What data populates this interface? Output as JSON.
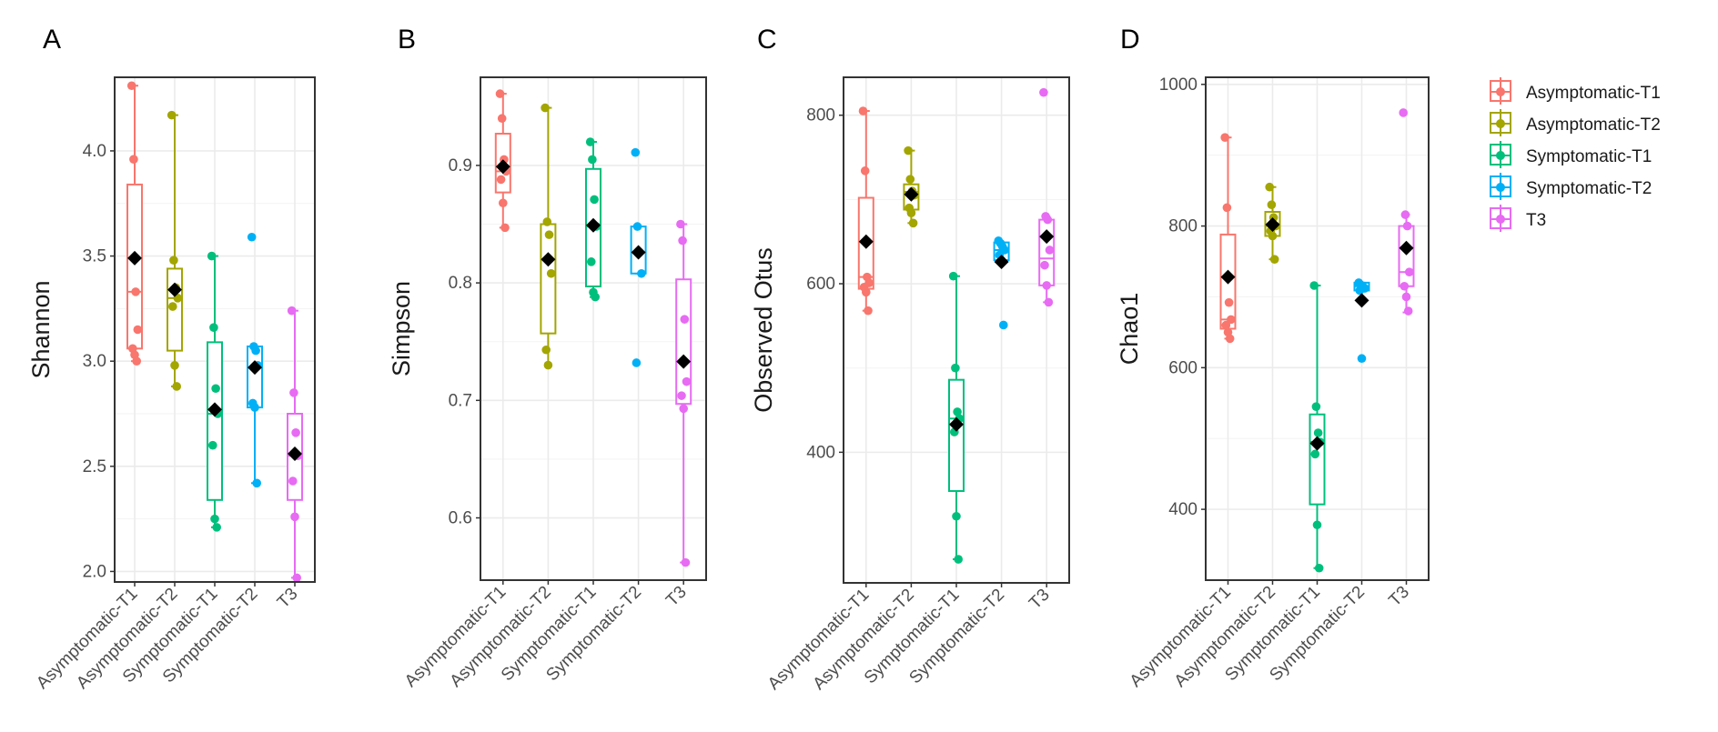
{
  "figure": {
    "background": "#ffffff",
    "panel_border": "#333333",
    "grid_color": "#ebebeb",
    "mean_color": "#000000"
  },
  "legend": {
    "entries": [
      {
        "label": "Asymptomatic-T1",
        "color": "#F8766D"
      },
      {
        "label": "Asymptomatic-T2",
        "color": "#A3A500"
      },
      {
        "label": "Symptomatic-T1",
        "color": "#00BF7D"
      },
      {
        "label": "Symptomatic-T2",
        "color": "#00B0F6"
      },
      {
        "label": "T3",
        "color": "#E76BF3"
      }
    ]
  },
  "chart_data": [
    {
      "type": "box",
      "panel": "A",
      "ylabel": "Shannon",
      "ylim": [
        1.95,
        4.35
      ],
      "yticks": [
        2.0,
        2.5,
        3.0,
        3.5,
        4.0
      ],
      "ytick_labels": [
        "2.0",
        "2.5",
        "3.0",
        "3.5",
        "4.0"
      ],
      "categories": [
        "Asymptomatic-T1",
        "Asymptomatic-T2",
        "Symptomatic-T1",
        "Symptomatic-T2",
        "T3"
      ],
      "series": [
        {
          "name": "Asymptomatic-T1",
          "color": "#F8766D",
          "min": 3.0,
          "q1": 3.06,
          "median": 3.33,
          "q3": 3.84,
          "max": 4.31,
          "mean": 3.49,
          "points": [
            4.31,
            3.96,
            3.33,
            3.15,
            3.06,
            3.03,
            3.0
          ]
        },
        {
          "name": "Asymptomatic-T2",
          "color": "#A3A500",
          "min": 2.88,
          "q1": 3.05,
          "median": 3.3,
          "q3": 3.44,
          "max": 4.17,
          "mean": 3.34,
          "points": [
            4.17,
            3.48,
            3.35,
            3.3,
            3.26,
            2.98,
            2.88
          ]
        },
        {
          "name": "Symptomatic-T1",
          "color": "#00BF7D",
          "min": 2.21,
          "q1": 2.34,
          "median": 2.75,
          "q3": 3.09,
          "max": 3.5,
          "mean": 2.77,
          "points": [
            3.5,
            3.16,
            2.87,
            2.75,
            2.6,
            2.25,
            2.21
          ]
        },
        {
          "name": "Symptomatic-T2",
          "color": "#00B0F6",
          "min": 2.42,
          "q1": 2.78,
          "median": 2.97,
          "q3": 3.07,
          "max": 3.07,
          "mean": 2.97,
          "points": [
            3.59,
            3.07,
            3.05,
            2.98,
            2.8,
            2.78,
            2.42
          ]
        },
        {
          "name": "T3",
          "color": "#E76BF3",
          "min": 1.97,
          "q1": 2.34,
          "median": 2.55,
          "q3": 2.75,
          "max": 3.24,
          "mean": 2.56,
          "points": [
            3.24,
            2.85,
            2.66,
            2.55,
            2.43,
            2.26,
            1.97
          ]
        }
      ]
    },
    {
      "type": "box",
      "panel": "B",
      "ylabel": "Simpson",
      "ylim": [
        0.547,
        0.975
      ],
      "yticks": [
        0.6,
        0.7,
        0.8,
        0.9
      ],
      "ytick_labels": [
        "0.6",
        "0.7",
        "0.8",
        "0.9"
      ],
      "categories": [
        "Asymptomatic-T1",
        "Asymptomatic-T2",
        "Symptomatic-T1",
        "Symptomatic-T2",
        "T3"
      ],
      "series": [
        {
          "name": "Asymptomatic-T1",
          "color": "#F8766D",
          "min": 0.847,
          "q1": 0.877,
          "median": 0.895,
          "q3": 0.927,
          "max": 0.961,
          "mean": 0.899,
          "points": [
            0.961,
            0.94,
            0.905,
            0.895,
            0.888,
            0.868,
            0.847
          ]
        },
        {
          "name": "Asymptomatic-T2",
          "color": "#A3A500",
          "min": 0.73,
          "q1": 0.757,
          "median": 0.82,
          "q3": 0.85,
          "max": 0.949,
          "mean": 0.82,
          "points": [
            0.949,
            0.852,
            0.841,
            0.808,
            0.743,
            0.73
          ]
        },
        {
          "name": "Symptomatic-T1",
          "color": "#00BF7D",
          "min": 0.788,
          "q1": 0.797,
          "median": 0.848,
          "q3": 0.897,
          "max": 0.92,
          "mean": 0.849,
          "points": [
            0.92,
            0.905,
            0.871,
            0.848,
            0.818,
            0.792,
            0.788
          ]
        },
        {
          "name": "Symptomatic-T2",
          "color": "#00B0F6",
          "min": 0.808,
          "q1": 0.808,
          "median": 0.826,
          "q3": 0.848,
          "max": 0.848,
          "mean": 0.826,
          "points": [
            0.911,
            0.848,
            0.826,
            0.808,
            0.732
          ]
        },
        {
          "name": "T3",
          "color": "#E76BF3",
          "min": 0.562,
          "q1": 0.697,
          "median": 0.733,
          "q3": 0.803,
          "max": 0.85,
          "mean": 0.733,
          "points": [
            0.85,
            0.836,
            0.769,
            0.716,
            0.704,
            0.693,
            0.562
          ]
        }
      ]
    },
    {
      "type": "box",
      "panel": "C",
      "ylabel": "Observed Otus",
      "ylim": [
        245,
        845
      ],
      "yticks": [
        400,
        600,
        800
      ],
      "ytick_labels": [
        "400",
        "600",
        "800"
      ],
      "categories": [
        "Asymptomatic-T1",
        "Asymptomatic-T2",
        "Symptomatic-T1",
        "Symptomatic-T2",
        "T3"
      ],
      "series": [
        {
          "name": "Asymptomatic-T1",
          "color": "#F8766D",
          "min": 568,
          "q1": 594,
          "median": 608,
          "q3": 702,
          "max": 805,
          "mean": 650,
          "points": [
            805,
            734,
            608,
            601,
            596,
            590,
            568
          ]
        },
        {
          "name": "Asymptomatic-T2",
          "color": "#A3A500",
          "min": 672,
          "q1": 688,
          "median": 709,
          "q3": 718,
          "max": 758,
          "mean": 706,
          "points": [
            758,
            724,
            710,
            705,
            690,
            684,
            672
          ]
        },
        {
          "name": "Symptomatic-T1",
          "color": "#00BF7D",
          "min": 273,
          "q1": 354,
          "median": 440,
          "q3": 486,
          "max": 609,
          "mean": 433,
          "points": [
            609,
            500,
            448,
            440,
            424,
            324,
            273
          ]
        },
        {
          "name": "Symptomatic-T2",
          "color": "#00B0F6",
          "min": 628,
          "q1": 628,
          "median": 640,
          "q3": 649,
          "max": 649,
          "mean": 626,
          "points": [
            651,
            648,
            644,
            640,
            634,
            628,
            551
          ]
        },
        {
          "name": "T3",
          "color": "#E76BF3",
          "min": 578,
          "q1": 598,
          "median": 630,
          "q3": 676,
          "max": 680,
          "mean": 656,
          "points": [
            827,
            680,
            676,
            640,
            622,
            598,
            578
          ]
        }
      ]
    },
    {
      "type": "box",
      "panel": "D",
      "ylabel": "Chao1",
      "ylim": [
        300,
        1010
      ],
      "yticks": [
        400,
        600,
        800,
        1000
      ],
      "ytick_labels": [
        "400",
        "600",
        "800",
        "1000"
      ],
      "categories": [
        "Asymptomatic-T1",
        "Asymptomatic-T2",
        "Symptomatic-T1",
        "Symptomatic-T2",
        "T3"
      ],
      "series": [
        {
          "name": "Asymptomatic-T1",
          "color": "#F8766D",
          "min": 641,
          "q1": 655,
          "median": 668,
          "q3": 788,
          "max": 925,
          "mean": 728,
          "points": [
            925,
            826,
            692,
            668,
            660,
            650,
            641
          ]
        },
        {
          "name": "Asymptomatic-T2",
          "color": "#A3A500",
          "min": 753,
          "q1": 786,
          "median": 800,
          "q3": 820,
          "max": 855,
          "mean": 802,
          "points": [
            855,
            830,
            812,
            800,
            793,
            786,
            753
          ]
        },
        {
          "name": "Symptomatic-T1",
          "color": "#00BF7D",
          "min": 317,
          "q1": 407,
          "median": 495,
          "q3": 534,
          "max": 716,
          "mean": 493,
          "points": [
            716,
            545,
            508,
            495,
            478,
            378,
            317
          ]
        },
        {
          "name": "Symptomatic-T2",
          "color": "#00B0F6",
          "min": 709,
          "q1": 709,
          "median": 715,
          "q3": 720,
          "max": 720,
          "mean": 695,
          "points": [
            720,
            717,
            715,
            712,
            709,
            613
          ]
        },
        {
          "name": "T3",
          "color": "#E76BF3",
          "min": 678,
          "q1": 715,
          "median": 735,
          "q3": 800,
          "max": 816,
          "mean": 769,
          "points": [
            960,
            816,
            800,
            735,
            715,
            700,
            680
          ]
        }
      ]
    }
  ]
}
